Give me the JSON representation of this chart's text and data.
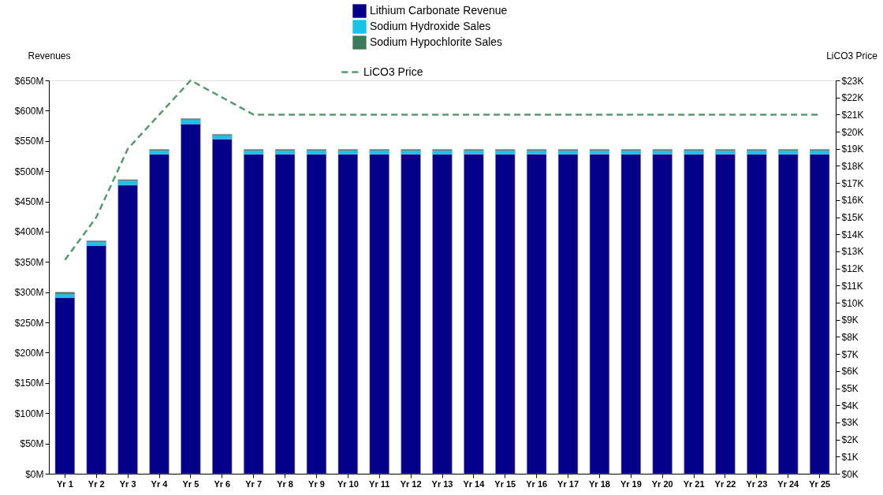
{
  "chart_data": {
    "type": "bar",
    "stacked": true,
    "categories": [
      "Yr 1",
      "Yr 2",
      "Yr 3",
      "Yr 4",
      "Yr 5",
      "Yr 6",
      "Yr 7",
      "Yr 8",
      "Yr 9",
      "Yr 10",
      "Yr 11",
      "Yr 12",
      "Yr 13",
      "Yr 14",
      "Yr 15",
      "Yr 16",
      "Yr 17",
      "Yr 18",
      "Yr 19",
      "Yr 20",
      "Yr 21",
      "Yr 22",
      "Yr 23",
      "Yr 24",
      "Yr 25"
    ],
    "ylabel": "Revenues",
    "y2label": "LiCO3 Price",
    "series": [
      {
        "name": "Lithium Carbonate Revenue",
        "color": "#04008a",
        "values": [
          291,
          377,
          477,
          528,
          578,
          553,
          528,
          528,
          528,
          528,
          528,
          528,
          528,
          528,
          528,
          528,
          528,
          528,
          528,
          528,
          528,
          528,
          528,
          528,
          528
        ]
      },
      {
        "name": "Sodium Hydroxide Sales",
        "color": "#17c3ea",
        "values": [
          6,
          6,
          7,
          6,
          7,
          6,
          6,
          6,
          6,
          6,
          6,
          6,
          6,
          6,
          6,
          6,
          6,
          6,
          6,
          6,
          6,
          6,
          6,
          6,
          6
        ]
      },
      {
        "name": "Sodium Hypochlorite Sales",
        "color": "#3d7a5c",
        "values": [
          3,
          2,
          2,
          2,
          2,
          2,
          2,
          2,
          2,
          2,
          2,
          2,
          2,
          2,
          2,
          2,
          2,
          2,
          2,
          2,
          2,
          2,
          2,
          2,
          2
        ]
      },
      {
        "name": "LiCO3 Price",
        "type": "line",
        "axis": "y2",
        "line_style": "dashed",
        "color": "#559a6e",
        "values": [
          12.5,
          15,
          19,
          21,
          23,
          22,
          21,
          21,
          21,
          21,
          21,
          21,
          21,
          21,
          21,
          21,
          21,
          21,
          21,
          21,
          21,
          21,
          21,
          21,
          21
        ]
      }
    ],
    "ylim": [
      0,
      650
    ],
    "yticks": [
      {
        "value": 0,
        "label": "$0M"
      },
      {
        "value": 50,
        "label": "$50M"
      },
      {
        "value": 100,
        "label": "$100M"
      },
      {
        "value": 150,
        "label": "$150M"
      },
      {
        "value": 200,
        "label": "$200M"
      },
      {
        "value": 250,
        "label": "$250M"
      },
      {
        "value": 300,
        "label": "$300M"
      },
      {
        "value": 350,
        "label": "$350M"
      },
      {
        "value": 400,
        "label": "$400M"
      },
      {
        "value": 450,
        "label": "$450M"
      },
      {
        "value": 500,
        "label": "$500M"
      },
      {
        "value": 550,
        "label": "$550M"
      },
      {
        "value": 600,
        "label": "$600M"
      },
      {
        "value": 650,
        "label": "$650M"
      }
    ],
    "y2lim": [
      0,
      23
    ],
    "y2ticks": [
      {
        "value": 0,
        "label": "$0K"
      },
      {
        "value": 1,
        "label": "$1K"
      },
      {
        "value": 2,
        "label": "$2K"
      },
      {
        "value": 3,
        "label": "$3K"
      },
      {
        "value": 4,
        "label": "$4K"
      },
      {
        "value": 5,
        "label": "$5K"
      },
      {
        "value": 6,
        "label": "$6K"
      },
      {
        "value": 7,
        "label": "$7K"
      },
      {
        "value": 8,
        "label": "$8K"
      },
      {
        "value": 9,
        "label": "$9K"
      },
      {
        "value": 10,
        "label": "$10K"
      },
      {
        "value": 11,
        "label": "$11K"
      },
      {
        "value": 12,
        "label": "$12K"
      },
      {
        "value": 13,
        "label": "$13K"
      },
      {
        "value": 14,
        "label": "$14K"
      },
      {
        "value": 15,
        "label": "$15K"
      },
      {
        "value": 16,
        "label": "$16K"
      },
      {
        "value": 17,
        "label": "$17K"
      },
      {
        "value": 18,
        "label": "$18K"
      },
      {
        "value": 19,
        "label": "$19K"
      },
      {
        "value": 20,
        "label": "$20K"
      },
      {
        "value": 21,
        "label": "$21K"
      },
      {
        "value": 22,
        "label": "$22K"
      },
      {
        "value": 23,
        "label": "$23K"
      }
    ],
    "grid": false,
    "legend": "top"
  }
}
